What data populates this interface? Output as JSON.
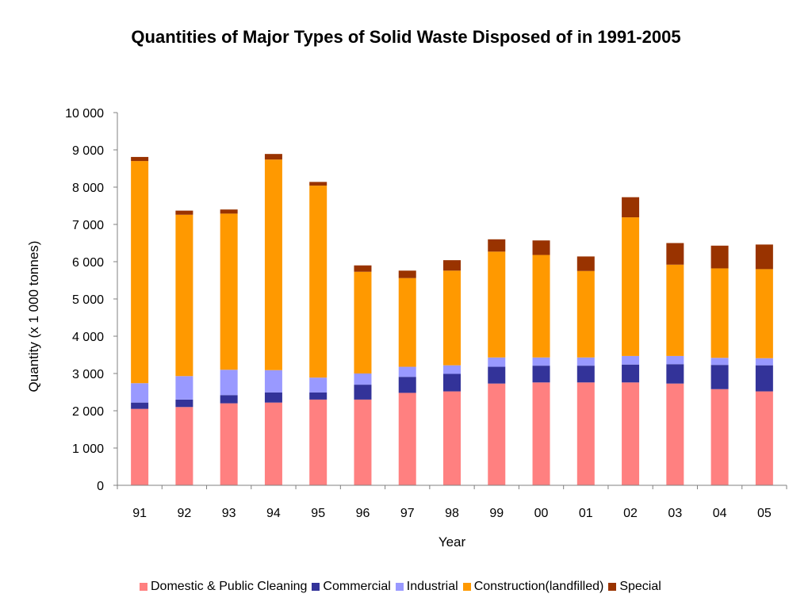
{
  "chart_data": {
    "type": "bar",
    "stacked": true,
    "title": "Quantities of Major Types of Solid Waste Disposed of in 1991-2005",
    "xlabel": "Year",
    "ylabel": "Quantity (x 1 000 tonnes)",
    "ylim": [
      0,
      10000
    ],
    "yticks": [
      "0",
      "1 000",
      "2 000",
      "3 000",
      "4 000",
      "5 000",
      "6 000",
      "7 000",
      "8 000",
      "9 000",
      "10 000"
    ],
    "grid": false,
    "legend_position": "bottom",
    "categories": [
      "91",
      "92",
      "93",
      "94",
      "95",
      "96",
      "97",
      "98",
      "99",
      "00",
      "01",
      "02",
      "03",
      "04",
      "05"
    ],
    "series": [
      {
        "name": "Domestic & Public Cleaning",
        "color": "#ff8080",
        "values": [
          2050,
          2100,
          2200,
          2220,
          2300,
          2300,
          2480,
          2520,
          2730,
          2760,
          2760,
          2760,
          2730,
          2580,
          2520
        ]
      },
      {
        "name": "Commercial",
        "color": "#333399",
        "values": [
          170,
          200,
          220,
          270,
          190,
          400,
          430,
          470,
          450,
          450,
          450,
          480,
          520,
          650,
          700
        ]
      },
      {
        "name": "Industrial",
        "color": "#9999ff",
        "values": [
          520,
          630,
          680,
          600,
          400,
          300,
          270,
          230,
          250,
          220,
          220,
          230,
          220,
          190,
          190
        ]
      },
      {
        "name": "Construction(landfilled)",
        "color": "#ff9900",
        "values": [
          5960,
          4330,
          4190,
          5650,
          5150,
          2730,
          2380,
          2540,
          2840,
          2750,
          2320,
          3720,
          2450,
          2400,
          2390
        ]
      },
      {
        "name": "Special",
        "color": "#993300",
        "values": [
          110,
          110,
          110,
          150,
          100,
          170,
          200,
          280,
          330,
          390,
          390,
          540,
          580,
          610,
          660
        ]
      }
    ]
  }
}
